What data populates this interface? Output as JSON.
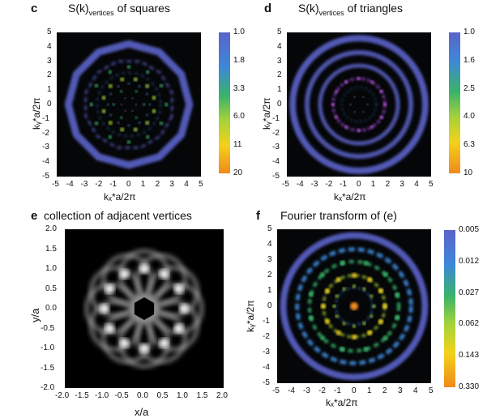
{
  "chart_data": [
    {
      "id": "c",
      "type": "heatmap",
      "panel_letter": "c",
      "title_main": "S(k)",
      "title_sub": "vertices",
      "title_rest": " of squares",
      "xlabel": "kₓ*a/2π",
      "ylabel": "kᵧ*a/2π",
      "xlim": [
        -5,
        5
      ],
      "ylim": [
        -5,
        5
      ],
      "xticks": [
        "-5",
        "-4",
        "-3",
        "-2",
        "-1",
        "0",
        "1",
        "2",
        "3",
        "4",
        "5"
      ],
      "yticks": [
        "5",
        "4",
        "3",
        "2",
        "1",
        "0",
        "-1",
        "-2",
        "-3",
        "-4",
        "-5"
      ],
      "colorbar_ticks": [
        "1.0",
        "1.8",
        "3.3",
        "6.0",
        "11",
        "20"
      ],
      "colors": [
        "#5b63c9",
        "#3e88d8",
        "#39b36a",
        "#a5d23a",
        "#f2d21b",
        "#f08a1b"
      ]
    },
    {
      "id": "d",
      "type": "heatmap",
      "panel_letter": "d",
      "title_main": "S(k)",
      "title_sub": "vertices",
      "title_rest": " of triangles",
      "xlabel": "kₓ*a/2π",
      "ylabel": "kᵧ*a/2π",
      "xlim": [
        -5,
        5
      ],
      "ylim": [
        -5,
        5
      ],
      "xticks": [
        "-5",
        "-4",
        "-3",
        "-2",
        "-1",
        "0",
        "1",
        "2",
        "3",
        "4",
        "5"
      ],
      "yticks": [
        "5",
        "4",
        "3",
        "2",
        "1",
        "0",
        "-1",
        "-2",
        "-3",
        "-4",
        "-5"
      ],
      "colorbar_ticks": [
        "1.0",
        "1.6",
        "2.5",
        "4.0",
        "6.3",
        "10"
      ],
      "colors": [
        "#5b63c9",
        "#3e88d8",
        "#39b36a",
        "#a5d23a",
        "#f2d21b",
        "#f08a1b"
      ]
    },
    {
      "id": "e",
      "type": "heatmap",
      "panel_letter": "e",
      "title_main": "collection of adjacent vertices",
      "xlabel": "x/a",
      "ylabel": "y/a",
      "xlim": [
        -2.0,
        2.0
      ],
      "ylim": [
        -2.0,
        2.0
      ],
      "xticks": [
        "-2.0",
        "-1.5",
        "-1.0",
        "-0.5",
        "0.0",
        "0.5",
        "1.0",
        "1.5",
        "2.0"
      ],
      "yticks": [
        "2.0",
        "1.5",
        "1.0",
        "0.5",
        "0.0",
        "-0.5",
        "-1.0",
        "-1.5",
        "-2.0"
      ]
    },
    {
      "id": "f",
      "type": "heatmap",
      "panel_letter": "f",
      "title_main": "Fourier transform of (e)",
      "xlabel": "kₓ*a/2π",
      "ylabel": "kᵧ*a/2π",
      "xlim": [
        -5,
        5
      ],
      "ylim": [
        -5,
        5
      ],
      "xticks": [
        "-5",
        "-4",
        "-3",
        "-2",
        "-1",
        "0",
        "1",
        "2",
        "3",
        "4",
        "5"
      ],
      "yticks": [
        "5",
        "4",
        "3",
        "2",
        "1",
        "0",
        "-1",
        "-2",
        "-3",
        "-4",
        "-5"
      ],
      "colorbar_ticks": [
        "0.005",
        "0.012",
        "0.027",
        "0.062",
        "0.143",
        "0.330"
      ],
      "colors": [
        "#5b63c9",
        "#3e88d8",
        "#39b36a",
        "#a5d23a",
        "#f2d21b",
        "#f08a1b"
      ]
    }
  ]
}
